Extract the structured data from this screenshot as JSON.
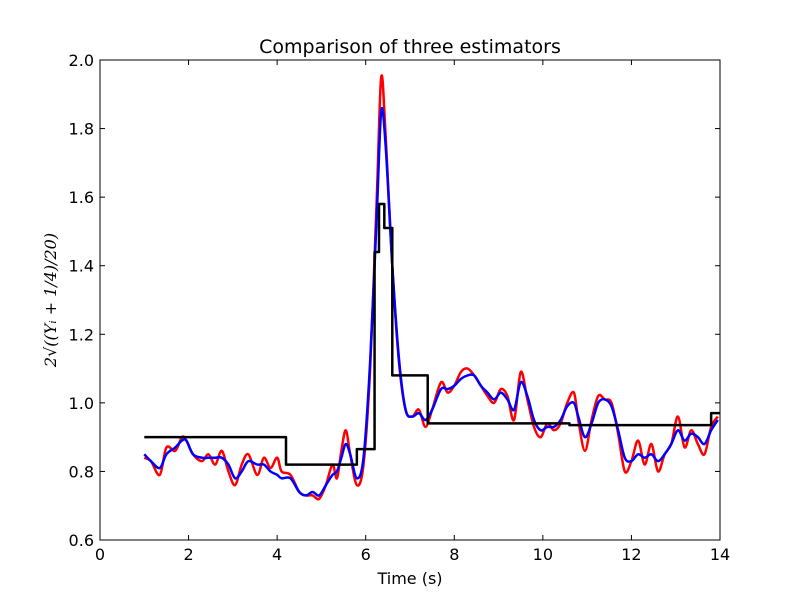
{
  "chart_data": {
    "type": "line",
    "title": "Comparison of three estimators",
    "xlabel": "Time (s)",
    "ylabel": "2√((Yᵢ + 1/4)/20)",
    "xlim": [
      0,
      14
    ],
    "ylim": [
      0.6,
      2.0
    ],
    "x_ticks": [
      0,
      2,
      4,
      6,
      8,
      10,
      12,
      14
    ],
    "x_tick_labels": [
      "0",
      "2",
      "4",
      "6",
      "8",
      "10",
      "12",
      "14"
    ],
    "y_ticks": [
      0.6,
      0.8,
      1.0,
      1.2,
      1.4,
      1.6,
      1.8,
      2.0
    ],
    "y_tick_labels": [
      "0.6",
      "0.8",
      "1.0",
      "1.2",
      "1.4",
      "1.6",
      "1.8",
      "2.0"
    ],
    "grid": false,
    "legend": "none",
    "series": [
      {
        "color": "#ff0000",
        "style": "smooth",
        "x": [
          1.0,
          1.15,
          1.35,
          1.5,
          1.7,
          1.85,
          1.95,
          2.1,
          2.3,
          2.45,
          2.6,
          2.75,
          2.9,
          3.05,
          3.2,
          3.35,
          3.55,
          3.7,
          3.85,
          4.0,
          4.1,
          4.3,
          4.5,
          4.65,
          4.8,
          4.95,
          5.1,
          5.25,
          5.35,
          5.45,
          5.55,
          5.65,
          5.8,
          5.95,
          6.1,
          6.25,
          6.35,
          6.45,
          6.6,
          6.75,
          6.9,
          7.05,
          7.2,
          7.35,
          7.5,
          7.7,
          7.85,
          8.0,
          8.15,
          8.3,
          8.45,
          8.6,
          8.75,
          8.9,
          9.05,
          9.2,
          9.35,
          9.5,
          9.65,
          9.8,
          9.95,
          10.1,
          10.25,
          10.4,
          10.55,
          10.7,
          10.8,
          10.95,
          11.1,
          11.25,
          11.4,
          11.55,
          11.7,
          11.85,
          12.0,
          12.15,
          12.3,
          12.45,
          12.6,
          12.75,
          12.9,
          13.05,
          13.2,
          13.35,
          13.5,
          13.65,
          13.8,
          13.95
        ],
        "y": [
          0.84,
          0.83,
          0.79,
          0.87,
          0.86,
          0.9,
          0.89,
          0.85,
          0.83,
          0.85,
          0.82,
          0.86,
          0.8,
          0.76,
          0.82,
          0.85,
          0.79,
          0.84,
          0.81,
          0.84,
          0.8,
          0.79,
          0.74,
          0.73,
          0.73,
          0.72,
          0.76,
          0.82,
          0.78,
          0.86,
          0.92,
          0.85,
          0.76,
          0.82,
          1.1,
          1.6,
          1.95,
          1.78,
          1.4,
          1.12,
          0.98,
          0.96,
          0.98,
          0.93,
          0.98,
          1.06,
          1.03,
          1.05,
          1.09,
          1.1,
          1.08,
          1.05,
          1.02,
          1.0,
          1.04,
          1.02,
          0.95,
          1.09,
          1.01,
          0.93,
          0.9,
          0.94,
          0.92,
          0.94,
          1.0,
          1.03,
          0.95,
          0.86,
          0.95,
          1.02,
          1.01,
          1.0,
          0.91,
          0.8,
          0.83,
          0.89,
          0.82,
          0.88,
          0.8,
          0.85,
          0.88,
          0.96,
          0.87,
          0.92,
          0.88,
          0.85,
          0.93,
          0.96
        ]
      },
      {
        "color": "#0000ff",
        "style": "smooth",
        "x": [
          1.0,
          1.15,
          1.35,
          1.5,
          1.7,
          1.85,
          1.95,
          2.1,
          2.3,
          2.45,
          2.6,
          2.75,
          2.9,
          3.05,
          3.2,
          3.35,
          3.55,
          3.7,
          3.85,
          4.0,
          4.1,
          4.3,
          4.5,
          4.65,
          4.8,
          4.95,
          5.1,
          5.25,
          5.35,
          5.45,
          5.55,
          5.65,
          5.8,
          5.95,
          6.1,
          6.25,
          6.35,
          6.45,
          6.6,
          6.75,
          6.9,
          7.05,
          7.2,
          7.35,
          7.5,
          7.7,
          7.85,
          8.0,
          8.15,
          8.3,
          8.45,
          8.6,
          8.75,
          8.9,
          9.05,
          9.2,
          9.35,
          9.5,
          9.65,
          9.8,
          9.95,
          10.1,
          10.25,
          10.4,
          10.55,
          10.7,
          10.8,
          10.95,
          11.1,
          11.25,
          11.4,
          11.55,
          11.7,
          11.85,
          12.0,
          12.15,
          12.3,
          12.45,
          12.6,
          12.75,
          12.9,
          13.05,
          13.2,
          13.35,
          13.5,
          13.65,
          13.8,
          13.95
        ],
        "y": [
          0.85,
          0.83,
          0.81,
          0.85,
          0.87,
          0.89,
          0.89,
          0.85,
          0.84,
          0.84,
          0.84,
          0.84,
          0.82,
          0.78,
          0.8,
          0.83,
          0.82,
          0.82,
          0.8,
          0.79,
          0.78,
          0.78,
          0.74,
          0.73,
          0.74,
          0.73,
          0.76,
          0.79,
          0.8,
          0.84,
          0.88,
          0.85,
          0.78,
          0.84,
          1.12,
          1.55,
          1.85,
          1.75,
          1.4,
          1.13,
          0.98,
          0.96,
          0.97,
          0.95,
          0.98,
          1.04,
          1.04,
          1.05,
          1.07,
          1.08,
          1.08,
          1.05,
          1.03,
          1.01,
          1.03,
          1.01,
          0.98,
          1.06,
          1.02,
          0.95,
          0.92,
          0.93,
          0.93,
          0.95,
          0.99,
          1.0,
          0.96,
          0.9,
          0.94,
          1.0,
          1.01,
          0.99,
          0.92,
          0.84,
          0.83,
          0.85,
          0.84,
          0.85,
          0.83,
          0.85,
          0.88,
          0.92,
          0.89,
          0.91,
          0.9,
          0.88,
          0.92,
          0.95
        ]
      },
      {
        "color": "#000000",
        "style": "step",
        "x": [
          1.0,
          4.2,
          4.2,
          5.8,
          5.8,
          6.2,
          6.2,
          6.3,
          6.3,
          6.42,
          6.42,
          6.6,
          6.6,
          7.4,
          7.4,
          10.6,
          10.6,
          13.8,
          13.8,
          14.0
        ],
        "y": [
          0.9,
          0.9,
          0.82,
          0.82,
          0.865,
          0.865,
          1.44,
          1.44,
          1.58,
          1.58,
          1.51,
          1.51,
          1.08,
          1.08,
          0.94,
          0.94,
          0.935,
          0.935,
          0.97,
          0.97
        ]
      }
    ]
  }
}
